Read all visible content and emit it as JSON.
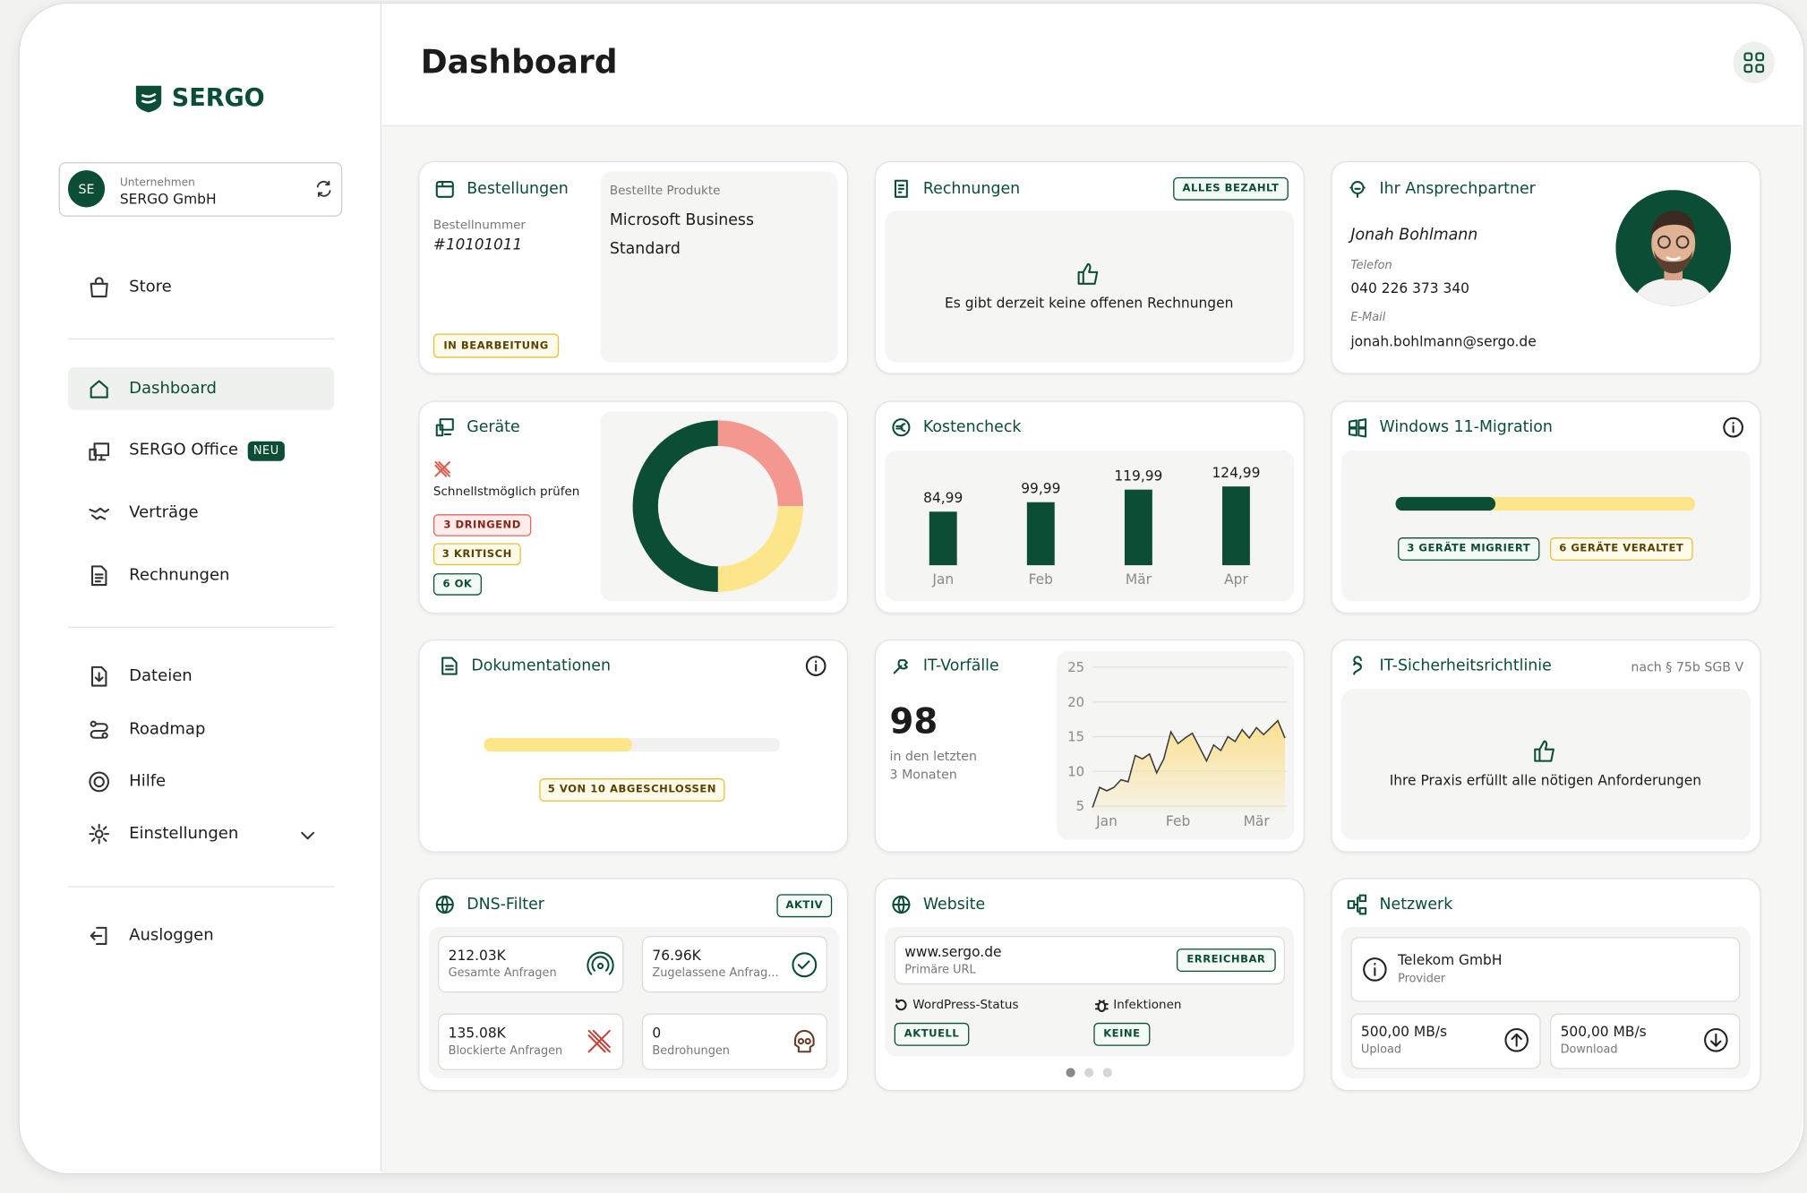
{
  "sidebar": {
    "logo": "SERGO",
    "company": {
      "initials": "SE",
      "label": "Unternehmen",
      "name": "SERGO GmbH"
    },
    "nav": [
      "Store",
      "Dashboard",
      "SERGO Office",
      "Verträge",
      "Rechnungen",
      "Dateien",
      "Roadmap",
      "Hilfe",
      "Einstellungen",
      "Ausloggen"
    ],
    "new_badge": "NEU"
  },
  "header": {
    "title": "Dashboard"
  },
  "cards": {
    "orders": {
      "title": "Bestellungen",
      "number_label": "Bestellnummer",
      "number": "#10101011",
      "status": "IN BEARBEITUNG",
      "products_label": "Bestellte Produkte",
      "product": [
        "Microsoft Business",
        "Standard"
      ]
    },
    "invoices": {
      "title": "Rechnungen",
      "status": "ALLES BEZAHLT",
      "message": "Es gibt derzeit keine offenen Rechnungen"
    },
    "contact": {
      "title": "Ihr Ansprechpartner",
      "name": "Jonah Bohlmann",
      "phone_label": "Telefon",
      "phone": "040 226 373 340",
      "email_label": "E-Mail",
      "email": "jonah.bohlmann@sergo.de"
    },
    "devices": {
      "title": "Geräte",
      "hint": "Schnellstmöglich prüfen"
    },
    "costs": {
      "title": "Kostencheck"
    },
    "windows": {
      "title": "Windows 11-Migration",
      "migrated": 3,
      "outdated": 6,
      "migrated_label": "3 GERÄTE MIGRIERT",
      "outdated_label": "6 GERÄTE VERALTET"
    },
    "docs": {
      "title": "Dokumentationen",
      "done": 5,
      "total": 10,
      "label": "5 VON 10 ABGESCHLOSSEN"
    },
    "incidents": {
      "title": "IT-Vorfälle",
      "count": 98,
      "caption": [
        "in den letzten",
        "3 Monaten"
      ]
    },
    "security": {
      "title": "IT-Sicherheitsrichtlinie",
      "note": "nach § 75b SGB V",
      "message": "Ihre Praxis erfüllt alle nötigen Anforderungen"
    },
    "dns": {
      "title": "DNS-Filter",
      "status": "AKTIV",
      "stats": [
        {
          "value": "212.03K",
          "label": "Gesamte Anfragen"
        },
        {
          "value": "76.96K",
          "label": "Zugelassene Anfrag..."
        },
        {
          "value": "135.08K",
          "label": "Blockierte Anfragen"
        },
        {
          "value": 0,
          "label": "Bedrohungen"
        }
      ]
    },
    "website": {
      "title": "Website",
      "url": "www.sergo.de",
      "url_label": "Primäre URL",
      "url_status": "ERREICHBAR",
      "wp_label": "WordPress-Status",
      "wp_status": "AKTUELL",
      "infection_label": "Infektionen",
      "infection_status": "KEINE"
    },
    "network": {
      "title": "Netzwerk",
      "provider": "Telekom GmbH",
      "provider_label": "Provider",
      "upload": "500,00 MB/s",
      "upload_label": "Upload",
      "download": "500,00 MB/s",
      "download_label": "Download"
    }
  },
  "chart_data": [
    {
      "type": "pie",
      "donut": true,
      "values": [
        3,
        3,
        6
      ],
      "value_labels": [
        "3 DRINGEND",
        "3 KRITISCH",
        "6 OK"
      ],
      "colors": [
        "#f4978e",
        "#fde68a",
        "#0b4d35"
      ]
    },
    {
      "type": "bar",
      "categories": [
        "Jan",
        "Feb",
        "Mär",
        "Apr"
      ],
      "values": [
        84.99,
        99.99,
        119.99,
        124.99
      ],
      "value_labels": [
        "84,99",
        "99,99",
        "119,99",
        "124,99"
      ],
      "color": "#0b4d35"
    },
    {
      "type": "area",
      "x": [
        0,
        1,
        2,
        3,
        4,
        5,
        6,
        7,
        8,
        9,
        10,
        11,
        12,
        13,
        14,
        15,
        16,
        17,
        18,
        19,
        20,
        21,
        22,
        23,
        24,
        25,
        26,
        27
      ],
      "values": [
        4.8,
        7.7,
        7.2,
        7.7,
        8.8,
        8.5,
        12.3,
        11.8,
        12.5,
        9.8,
        11.8,
        15.7,
        14,
        14.8,
        15.5,
        13.5,
        11.5,
        13.8,
        13,
        15,
        14.3,
        16,
        14.8,
        16.3,
        15.3,
        16.3,
        17.3,
        14.8
      ],
      "xlim": [
        0,
        27
      ],
      "xticks": [
        {
          "value": 2,
          "label": "Jan"
        },
        {
          "value": 12,
          "label": "Feb"
        },
        {
          "value": 23,
          "label": "Mär"
        }
      ],
      "ylim": [
        4,
        26
      ],
      "yticks": [
        5,
        10,
        15,
        20,
        25
      ],
      "grid": true,
      "color": "#3a3a3a",
      "fill": "#fbe08e"
    }
  ]
}
